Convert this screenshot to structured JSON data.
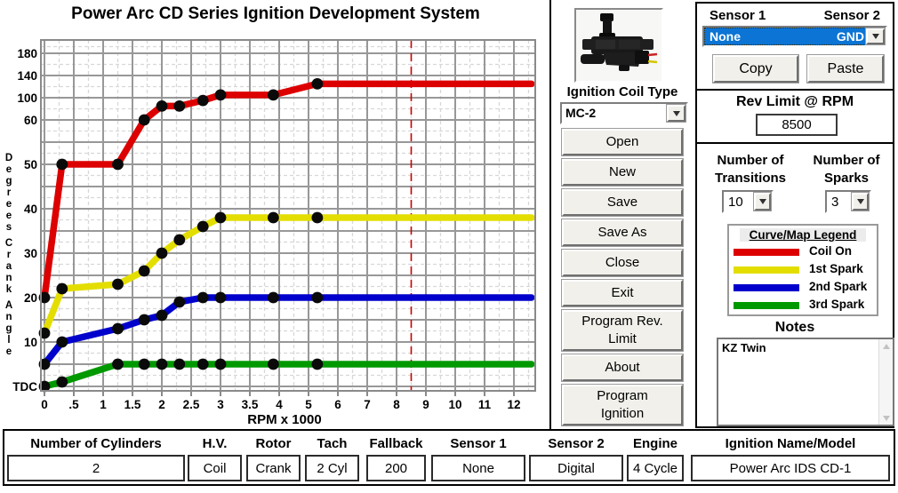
{
  "window": {
    "title": "Power Arc CD Series Ignition Development System"
  },
  "chart_data": {
    "type": "line",
    "title": "Power Arc CD Series Ignition Development System",
    "xlabel": "RPM x 1000",
    "ylabel": "Degrees Crank Angle",
    "x_tick_labels": [
      "0",
      ".5",
      "1",
      "1.5",
      "2",
      "2.5",
      "3",
      "3.5",
      "4",
      "5",
      "6",
      "7",
      "8",
      "9",
      "10",
      "11",
      "12"
    ],
    "x_tick_values": [
      0,
      0.5,
      1,
      1.5,
      2,
      2.5,
      3,
      3.5,
      4,
      5,
      6,
      7,
      8,
      9,
      10,
      11,
      12
    ],
    "y_tick_labels": [
      "180",
      "140",
      "100",
      "60",
      "50",
      "40",
      "30",
      "20",
      "10",
      "TDC"
    ],
    "y_tick_values": [
      180,
      140,
      100,
      60,
      50,
      40,
      30,
      20,
      10,
      0
    ],
    "y_scale_note": "piecewise: 0-60 deg linear, 60-180 deg compressed",
    "grid": true,
    "rev_limit_marker_rpm_x1000": 8.5,
    "x_extend_to": 12.6,
    "transitions_rpm_x1000": [
      0,
      0.3,
      1.25,
      1.7,
      2.0,
      2.3,
      2.7,
      3.0,
      3.9,
      5.3
    ],
    "series": [
      {
        "name": "Coil On",
        "color": "#dd0000",
        "values": [
          20,
          50,
          50,
          60,
          85,
          85,
          95,
          105,
          105,
          125
        ]
      },
      {
        "name": "1st Spark",
        "color": "#e3de00",
        "values": [
          12,
          22,
          23,
          26,
          30,
          33,
          36,
          38,
          38,
          38
        ]
      },
      {
        "name": "2nd Spark",
        "color": "#0000cc",
        "values": [
          5,
          10,
          13,
          15,
          16,
          19,
          20,
          20,
          20,
          20
        ]
      },
      {
        "name": "3rd Spark",
        "color": "#009900",
        "values": [
          0,
          1,
          5,
          5,
          5,
          5,
          5,
          5,
          5,
          5
        ]
      }
    ],
    "legend_position": "right panel box"
  },
  "middle": {
    "coil_image": "ignition-coil-photo",
    "coil_type_label": "Ignition Coil Type",
    "coil_type_value": "MC-2",
    "buttons": [
      "Open",
      "New",
      "Save",
      "Save As",
      "Close",
      "Exit",
      "Program Rev.\nLimit",
      "About",
      "Program\nIgnition"
    ]
  },
  "right": {
    "sensor1_label": "Sensor 1",
    "sensor2_label": "Sensor 2",
    "sensor_selected": {
      "name": "None",
      "value": "GND"
    },
    "copy_label": "Copy",
    "paste_label": "Paste",
    "rev_limit": {
      "label": "Rev Limit @ RPM",
      "value": "8500"
    },
    "transitions": {
      "line1": "Number of",
      "line2": "Transitions",
      "value": "10"
    },
    "sparks": {
      "line1": "Number of",
      "line2": "Sparks",
      "value": "3"
    },
    "legend": {
      "title": "Curve/Map Legend",
      "entries": [
        {
          "label": "Coil On",
          "color": "#dd0000"
        },
        {
          "label": "1st Spark",
          "color": "#e3de00"
        },
        {
          "label": "2nd Spark",
          "color": "#0000cc"
        },
        {
          "label": "3rd Spark",
          "color": "#009900"
        }
      ]
    },
    "notes_label": "Notes",
    "notes_text": "KZ Twin"
  },
  "bottom": {
    "fields": [
      {
        "label": "Number of Cylinders",
        "value": "2"
      },
      {
        "label": "H.V.",
        "value": "Coil"
      },
      {
        "label": "Rotor",
        "value": "Crank"
      },
      {
        "label": "Tach",
        "value": "2 Cyl"
      },
      {
        "label": "Fallback",
        "value": "200"
      },
      {
        "label": "Sensor 1",
        "value": "None"
      },
      {
        "label": "Sensor 2",
        "value": "Digital"
      },
      {
        "label": "Engine",
        "value": "4 Cycle"
      },
      {
        "label": "Ignition Name/Model",
        "value": "Power Arc IDS CD-1"
      }
    ]
  }
}
